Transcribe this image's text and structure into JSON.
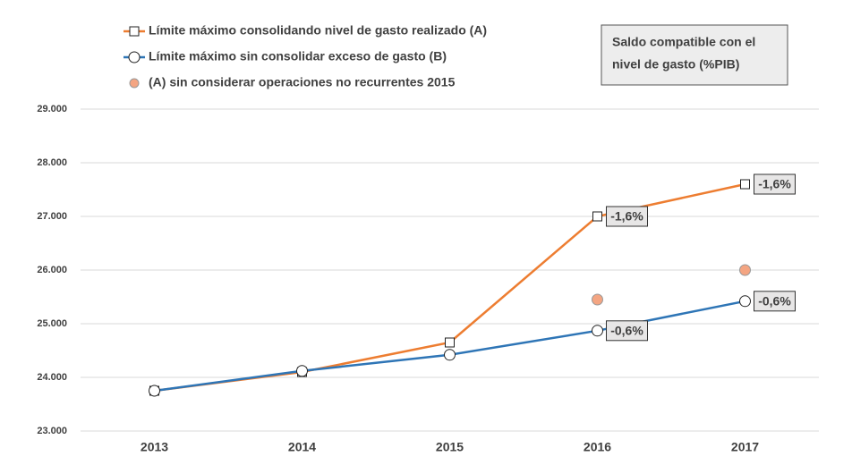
{
  "chart_data": {
    "type": "line",
    "categories": [
      "2013",
      "2014",
      "2015",
      "2016",
      "2017"
    ],
    "series": [
      {
        "name": "Límite máximo consolidando nivel de gasto realizado (A)",
        "color": "#ed7d31",
        "marker": "square",
        "values": [
          23750,
          24100,
          24650,
          27000,
          27600
        ],
        "point_labels": [
          null,
          null,
          null,
          "-1,6%",
          "-1,6%"
        ]
      },
      {
        "name": "Límite máximo sin consolidar exceso de gasto (B)",
        "color": "#2e75b6",
        "marker": "circle",
        "values": [
          23750,
          24120,
          24420,
          24870,
          25420
        ],
        "point_labels": [
          null,
          null,
          null,
          "-0,6%",
          "-0,6%"
        ]
      },
      {
        "name": "(A) sin considerar operaciones no recurrentes 2015",
        "color": "#f4a582",
        "marker": "dot",
        "line": false,
        "values": [
          null,
          null,
          null,
          25450,
          26000
        ]
      }
    ],
    "annotation": [
      "Saldo compatible con el",
      "nivel de gasto (%PIB)"
    ],
    "ylim": [
      23000,
      29000
    ],
    "yticks": [
      {
        "value": 23000,
        "label": "23.000"
      },
      {
        "value": 24000,
        "label": "24.000"
      },
      {
        "value": 25000,
        "label": "25.000"
      },
      {
        "value": 26000,
        "label": "26.000"
      },
      {
        "value": 27000,
        "label": "27.000"
      },
      {
        "value": 28000,
        "label": "28.000"
      },
      {
        "value": 29000,
        "label": "29.000"
      }
    ],
    "grid": true
  }
}
